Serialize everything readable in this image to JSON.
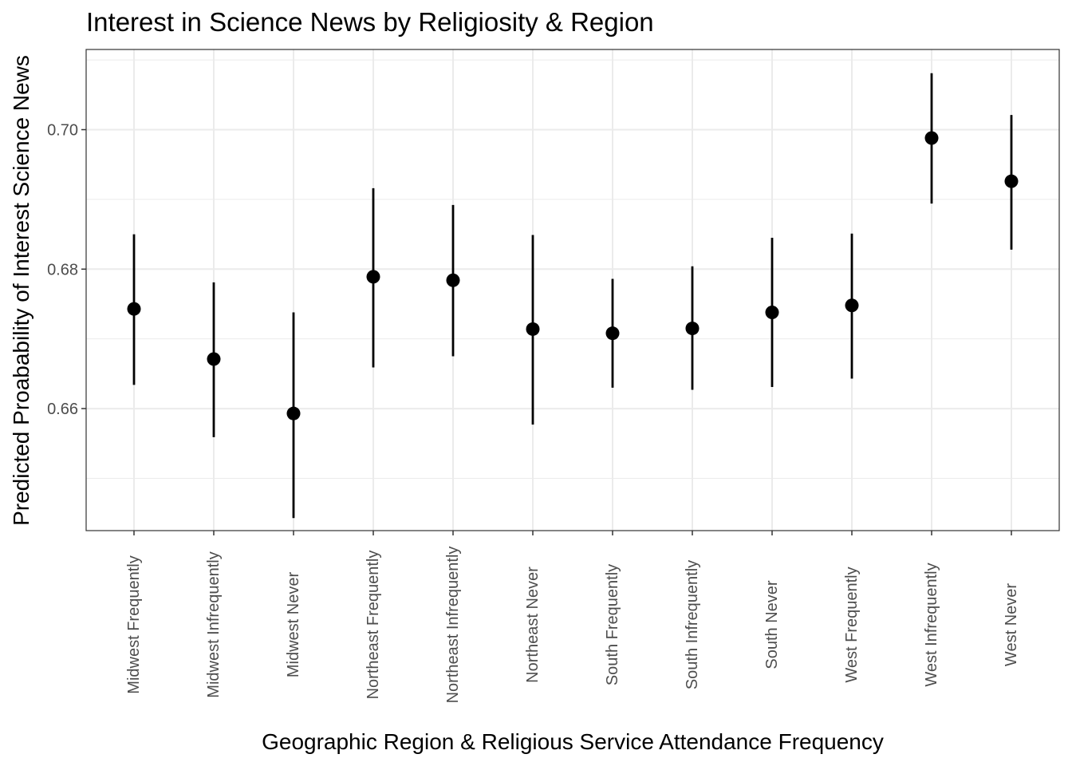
{
  "chart_data": {
    "type": "pointrange",
    "title": "Interest in Science News by Religiosity & Region",
    "xlabel": "Geographic Region & Religious Service Attendance Frequency",
    "ylabel": "Predicted Proabability of Interest Science News",
    "ylim": [
      0.6425,
      0.7115
    ],
    "yticks": [
      0.66,
      0.68,
      0.7
    ],
    "ytick_labels": [
      "0.66",
      "0.68",
      "0.70"
    ],
    "grid": true,
    "categories": [
      "Midwest Frequently",
      "Midwest Infrequently",
      "Midwest Never",
      "Northeast Frequently",
      "Northeast Infrequently",
      "Northeast Never",
      "South Frequently",
      "South Infrequently",
      "South Never",
      "West Frequently",
      "West Infrequently",
      "West Never"
    ],
    "values": [
      0.6743,
      0.6671,
      0.6593,
      0.6789,
      0.6784,
      0.6714,
      0.6708,
      0.6715,
      0.6738,
      0.6748,
      0.6988,
      0.6926
    ],
    "lower": [
      0.6634,
      0.6559,
      0.6443,
      0.6659,
      0.6675,
      0.6577,
      0.663,
      0.6627,
      0.6631,
      0.6643,
      0.6894,
      0.6828
    ],
    "upper": [
      0.685,
      0.6781,
      0.6738,
      0.6916,
      0.6892,
      0.6849,
      0.6786,
      0.6804,
      0.6845,
      0.6851,
      0.7081,
      0.7021
    ]
  }
}
